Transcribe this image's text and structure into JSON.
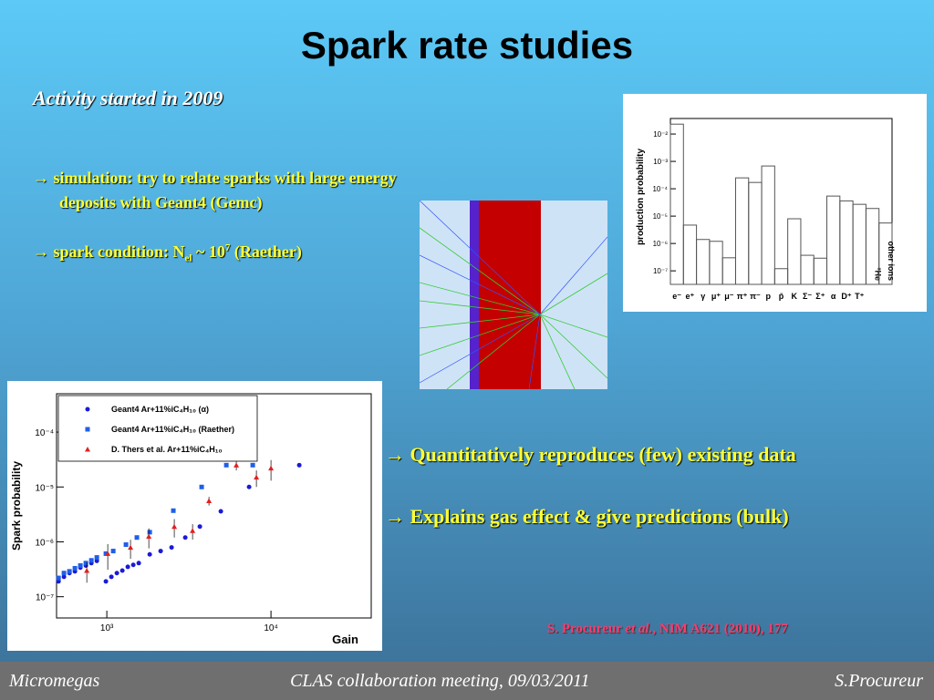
{
  "title": "Spark rate studies",
  "subtitle": "Activity started in 2009",
  "left_points": {
    "simulation": "→ simulation: try to relate sparks with large energy deposits with Geant4 (Gemc)",
    "condition": [
      "→ spark condition: N",
      "el",
      " ~ 10",
      "7",
      " (Raether)"
    ]
  },
  "right_points": [
    "→ Quantitatively reproduces (few) existing data",
    "→ Explains gas effect & give predictions (bulk)"
  ],
  "reference": [
    "S. Procureur ",
    "et al.",
    ", NIM A621 (2010), 177"
  ],
  "footer": {
    "left": "Micromegas",
    "center": "CLAS collaboration meeting, 09/03/2011",
    "right": "S.Procureur"
  },
  "chart_data": [
    {
      "type": "scatter",
      "xlabel": "Gain",
      "ylabel": "Spark probability",
      "xscale": "log",
      "yscale": "log",
      "xlim": [
        494,
        40800
      ],
      "ylim": [
        4.1e-08,
        0.0005
      ],
      "xticks": [
        {
          "value": 1000,
          "label": "10³"
        },
        {
          "value": 10000,
          "label": "10⁴"
        }
      ],
      "yticks": [
        {
          "value": 1e-07,
          "label": "10⁻⁷"
        },
        {
          "value": 1e-06,
          "label": "10⁻⁶"
        },
        {
          "value": 1e-05,
          "label": "10⁻⁵"
        },
        {
          "value": 0.0001,
          "label": "10⁻⁴"
        }
      ],
      "legend": "top-left",
      "series": [
        {
          "name": "Geant4 Ar+11%iC₄H₁₀ (α)",
          "color": "#1a1ad8",
          "marker": "circle",
          "x": [
            508,
            548,
            592,
            639,
            690,
            745,
            805,
            869,
            987,
            1066,
            1151,
            1243,
            1342,
            1449,
            1565,
            1825,
            2127,
            2480,
            3005,
            3687,
            4948,
            7356,
            14870
          ],
          "values": [
            1.9e-07,
            2.3e-07,
            2.7e-07,
            2.9e-07,
            3.4e-07,
            3.7e-07,
            4.1e-07,
            4.5e-07,
            1.9e-07,
            2.3e-07,
            2.7e-07,
            3e-07,
            3.5e-07,
            3.8e-07,
            4.1e-07,
            5.9e-07,
            6.8e-07,
            7.9e-07,
            1.2e-06,
            1.9e-06,
            3.6e-06,
            1e-05,
            2.5e-05
          ]
        },
        {
          "name": "Geant4 Ar+11%iC₄H₁₀ (Raether)",
          "color": "#1f5fe8",
          "marker": "square",
          "x": [
            508,
            548,
            592,
            639,
            690,
            745,
            805,
            869,
            987,
            1094,
            1308,
            1524,
            1825,
            2542,
            3781,
            5346,
            7743
          ],
          "values": [
            2.2e-07,
            2.7e-07,
            2.9e-07,
            3.3e-07,
            3.7e-07,
            4.1e-07,
            4.6e-07,
            5.2e-07,
            6.1e-07,
            6.8e-07,
            8.9e-07,
            1.2e-06,
            1.5e-06,
            3.7e-06,
            1e-05,
            2.5e-05,
            2.5e-05
          ]
        },
        {
          "name": "D. Thers et al. Ar+11%iC₄H₁₀",
          "color": "#e02020",
          "marker": "triangle",
          "x": [
            755,
            1013,
            1394,
            1802,
            2576,
            3329,
            4190,
            6150,
            8150,
            10000
          ],
          "values": [
            3e-07,
            6.1e-07,
            7.9e-07,
            1.26e-06,
            1.9e-06,
            1.6e-06,
            5.6e-06,
            2.5e-05,
            1.5e-05,
            2.2e-05
          ],
          "errors": [
            1.2e-07,
            3e-07,
            3e-07,
            5e-07,
            7e-07,
            5e-07,
            1e-06,
            5e-06,
            5e-06,
            9e-06
          ]
        }
      ]
    },
    {
      "type": "bar",
      "ylabel": "production probability",
      "yscale": "log",
      "ylim": [
        3.2e-08,
        0.037
      ],
      "yticks": [
        {
          "value": 1e-07,
          "label": "10⁻⁷"
        },
        {
          "value": 1e-06,
          "label": "10⁻⁶"
        },
        {
          "value": 1e-05,
          "label": "10⁻⁵"
        },
        {
          "value": 0.0001,
          "label": "10⁻⁴"
        },
        {
          "value": 0.001,
          "label": "10⁻³"
        },
        {
          "value": 0.01,
          "label": "10⁻²"
        }
      ],
      "color": "#555555",
      "categories": [
        "e⁻",
        "e⁺",
        "γ",
        "μ⁺",
        "μ⁻",
        "π⁺",
        "π⁻",
        "p",
        "p̄",
        "K",
        "Σ⁻",
        "Σ⁺",
        "α",
        "D⁺",
        "T⁺",
        "³He",
        "other ions"
      ],
      "values": [
        0.023,
        4.7e-06,
        1.4e-06,
        1.2e-06,
        3e-07,
        0.00025,
        0.00017,
        0.00068,
        1.2e-07,
        8e-06,
        3.7e-07,
        2.9e-07,
        5.4e-05,
        3.6e-05,
        2.7e-05,
        1.9e-05,
        5.6e-06
      ]
    }
  ]
}
